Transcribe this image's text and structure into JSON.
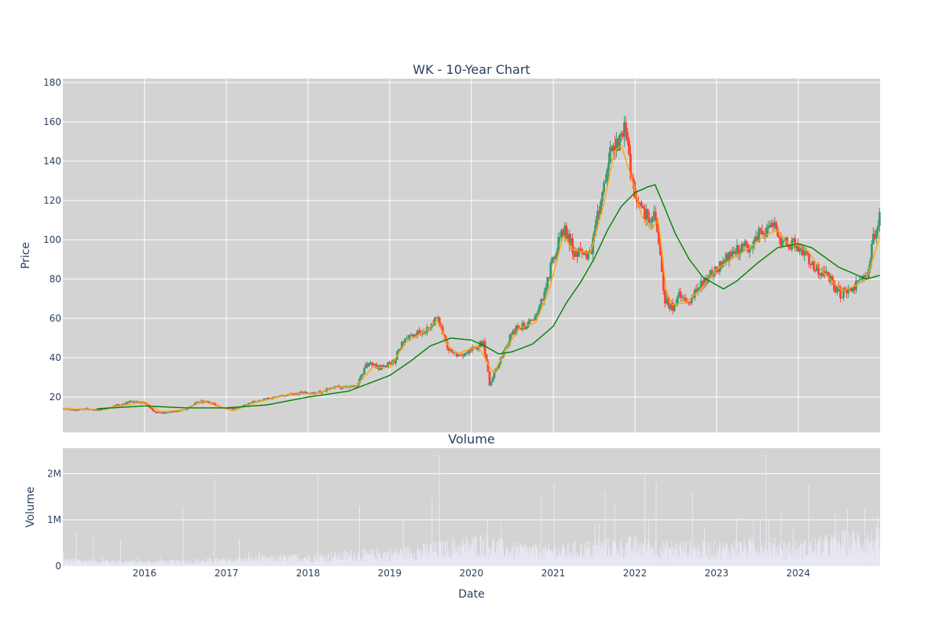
{
  "chart_data": [
    {
      "type": "candlestick",
      "title": "WK - 10-Year Chart",
      "ylabel": "Price",
      "ylim": [
        2,
        182
      ],
      "yticks": [
        20,
        40,
        60,
        80,
        100,
        120,
        140,
        160,
        180
      ],
      "xlim": [
        "2015-01-01",
        "2025-01-01"
      ],
      "x_gridlines": [
        "2016-01-01",
        "2017-01-01",
        "2018-01-01",
        "2019-01-01",
        "2020-01-01",
        "2021-01-01",
        "2022-01-01",
        "2023-01-01",
        "2024-01-01"
      ],
      "grid": true,
      "background": "#d3d3d3",
      "colors": {
        "up": "#3d9970",
        "down": "#ff4136",
        "ma_short": "#ffa500",
        "ma_long": "#008000"
      },
      "price_path": [
        [
          "2015-01-01",
          14
        ],
        [
          "2015-02-15",
          13
        ],
        [
          "2015-04-01",
          14
        ],
        [
          "2015-06-01",
          13.5
        ],
        [
          "2015-07-15",
          14
        ],
        [
          "2015-09-01",
          16
        ],
        [
          "2015-11-01",
          17.5
        ],
        [
          "2016-01-01",
          17
        ],
        [
          "2016-02-15",
          12
        ],
        [
          "2016-04-15",
          12
        ],
        [
          "2016-07-01",
          14
        ],
        [
          "2016-09-01",
          18
        ],
        [
          "2016-10-15",
          17
        ],
        [
          "2016-12-15",
          14
        ],
        [
          "2017-02-01",
          14
        ],
        [
          "2017-05-01",
          17.5
        ],
        [
          "2017-08-01",
          20
        ],
        [
          "2017-11-01",
          22
        ],
        [
          "2018-02-01",
          22
        ],
        [
          "2018-05-01",
          25
        ],
        [
          "2018-08-01",
          25
        ],
        [
          "2018-09-15",
          37
        ],
        [
          "2018-11-15",
          35
        ],
        [
          "2019-01-15",
          38
        ],
        [
          "2019-03-01",
          49
        ],
        [
          "2019-06-01",
          54
        ],
        [
          "2019-08-01",
          60
        ],
        [
          "2019-09-15",
          45
        ],
        [
          "2019-11-01",
          41
        ],
        [
          "2020-01-15",
          45
        ],
        [
          "2020-02-20",
          48
        ],
        [
          "2020-03-20",
          26
        ],
        [
          "2020-04-15",
          34
        ],
        [
          "2020-06-01",
          47
        ],
        [
          "2020-07-15",
          55
        ],
        [
          "2020-10-01",
          58
        ],
        [
          "2020-11-15",
          72
        ],
        [
          "2021-01-01",
          92
        ],
        [
          "2021-02-15",
          106
        ],
        [
          "2021-04-01",
          94
        ],
        [
          "2021-06-15",
          92
        ],
        [
          "2021-08-01",
          122
        ],
        [
          "2021-09-15",
          146
        ],
        [
          "2021-10-15",
          150
        ],
        [
          "2021-11-15",
          156
        ],
        [
          "2021-12-15",
          130
        ],
        [
          "2022-01-20",
          116
        ],
        [
          "2022-03-01",
          112
        ],
        [
          "2022-04-01",
          110
        ],
        [
          "2022-05-10",
          70
        ],
        [
          "2022-06-15",
          65
        ],
        [
          "2022-07-15",
          72
        ],
        [
          "2022-08-15",
          68
        ],
        [
          "2022-10-01",
          74
        ],
        [
          "2022-11-15",
          80
        ],
        [
          "2023-01-01",
          86
        ],
        [
          "2023-03-15",
          94
        ],
        [
          "2023-04-15",
          96
        ],
        [
          "2023-06-01",
          97
        ],
        [
          "2023-07-15",
          104
        ],
        [
          "2023-09-15",
          107
        ],
        [
          "2023-10-20",
          98
        ],
        [
          "2023-12-15",
          98
        ],
        [
          "2024-02-01",
          93
        ],
        [
          "2024-03-15",
          85
        ],
        [
          "2024-05-01",
          82
        ],
        [
          "2024-07-01",
          73
        ],
        [
          "2024-08-01",
          73
        ],
        [
          "2024-10-01",
          79
        ],
        [
          "2024-11-01",
          82
        ],
        [
          "2024-12-01",
          103
        ],
        [
          "2024-12-31",
          112
        ]
      ],
      "ma_short_path": [
        [
          "2015-01-01",
          14
        ],
        [
          "2015-06-01",
          13.8
        ],
        [
          "2015-09-15",
          15.5
        ],
        [
          "2016-01-01",
          17.5
        ],
        [
          "2016-03-15",
          12.5
        ],
        [
          "2016-07-01",
          13.5
        ],
        [
          "2016-09-15",
          18
        ],
        [
          "2016-12-15",
          14.5
        ],
        [
          "2017-02-01",
          13
        ],
        [
          "2017-05-01",
          17
        ],
        [
          "2017-08-01",
          19.5
        ],
        [
          "2017-11-01",
          22
        ],
        [
          "2018-02-01",
          21.5
        ],
        [
          "2018-05-01",
          25
        ],
        [
          "2018-08-01",
          25
        ],
        [
          "2018-10-15",
          35
        ],
        [
          "2019-01-01",
          35
        ],
        [
          "2019-03-15",
          48
        ],
        [
          "2019-06-15",
          54
        ],
        [
          "2019-08-01",
          59
        ],
        [
          "2019-09-20",
          46
        ],
        [
          "2019-11-01",
          42
        ],
        [
          "2020-02-01",
          46
        ],
        [
          "2020-03-20",
          36
        ],
        [
          "2020-04-10",
          32
        ],
        [
          "2020-06-01",
          44
        ],
        [
          "2020-08-01",
          55
        ],
        [
          "2020-10-15",
          58
        ],
        [
          "2020-12-15",
          75
        ],
        [
          "2021-02-15",
          102
        ],
        [
          "2021-04-01",
          95
        ],
        [
          "2021-06-15",
          93
        ],
        [
          "2021-08-15",
          118
        ],
        [
          "2021-10-01",
          145
        ],
        [
          "2021-11-01",
          148
        ],
        [
          "2021-12-15",
          132
        ],
        [
          "2022-02-01",
          112
        ],
        [
          "2022-03-15",
          105
        ],
        [
          "2022-04-15",
          110
        ],
        [
          "2022-05-20",
          75
        ],
        [
          "2022-06-15",
          67
        ],
        [
          "2022-08-15",
          68
        ],
        [
          "2022-10-15",
          74
        ],
        [
          "2023-01-01",
          85
        ],
        [
          "2023-04-01",
          92
        ],
        [
          "2023-06-01",
          96
        ],
        [
          "2023-08-01",
          102
        ],
        [
          "2023-10-01",
          105
        ],
        [
          "2023-11-15",
          98
        ],
        [
          "2024-01-01",
          97
        ],
        [
          "2024-02-15",
          94
        ],
        [
          "2024-04-15",
          84
        ],
        [
          "2024-06-01",
          79
        ],
        [
          "2024-07-15",
          74
        ],
        [
          "2024-09-01",
          76
        ],
        [
          "2024-11-01",
          80
        ],
        [
          "2024-12-31",
          102
        ]
      ],
      "ma_long_path": [
        [
          "2015-06-01",
          14
        ],
        [
          "2016-01-01",
          15.5
        ],
        [
          "2016-07-01",
          14.5
        ],
        [
          "2017-01-01",
          14.5
        ],
        [
          "2017-07-01",
          16
        ],
        [
          "2018-01-01",
          20
        ],
        [
          "2018-07-01",
          23
        ],
        [
          "2018-10-01",
          27
        ],
        [
          "2019-01-01",
          31
        ],
        [
          "2019-04-01",
          38
        ],
        [
          "2019-07-01",
          46
        ],
        [
          "2019-10-01",
          50
        ],
        [
          "2020-01-01",
          49
        ],
        [
          "2020-03-01",
          46
        ],
        [
          "2020-05-01",
          42
        ],
        [
          "2020-07-01",
          43
        ],
        [
          "2020-10-01",
          47
        ],
        [
          "2021-01-01",
          56
        ],
        [
          "2021-03-01",
          68
        ],
        [
          "2021-05-01",
          78
        ],
        [
          "2021-07-01",
          90
        ],
        [
          "2021-09-01",
          105
        ],
        [
          "2021-11-01",
          117
        ],
        [
          "2022-01-01",
          124
        ],
        [
          "2022-03-01",
          127
        ],
        [
          "2022-04-01",
          128
        ],
        [
          "2022-05-01",
          120
        ],
        [
          "2022-07-01",
          103
        ],
        [
          "2022-09-01",
          90
        ],
        [
          "2022-11-01",
          81
        ],
        [
          "2023-01-01",
          77
        ],
        [
          "2023-02-01",
          75
        ],
        [
          "2023-04-01",
          79
        ],
        [
          "2023-07-01",
          88
        ],
        [
          "2023-10-01",
          96
        ],
        [
          "2024-01-01",
          98
        ],
        [
          "2024-03-01",
          96
        ],
        [
          "2024-05-01",
          91
        ],
        [
          "2024-07-01",
          86
        ],
        [
          "2024-09-01",
          83
        ],
        [
          "2024-11-01",
          80
        ],
        [
          "2024-12-31",
          82
        ]
      ]
    },
    {
      "type": "bar",
      "title": "Volume",
      "xlabel": "Date",
      "ylabel": "Volume",
      "ylim": [
        0,
        2550000
      ],
      "yticks": [
        0,
        1000000,
        2000000
      ],
      "ytick_labels": [
        "0",
        "1M",
        "2M"
      ],
      "xlim": [
        "2015-01-01",
        "2025-01-01"
      ],
      "xticks": [
        "2016-01-01",
        "2017-01-01",
        "2018-01-01",
        "2019-01-01",
        "2020-01-01",
        "2021-01-01",
        "2022-01-01",
        "2023-01-01",
        "2024-01-01"
      ],
      "xtick_labels": [
        "2016",
        "2017",
        "2018",
        "2019",
        "2020",
        "2021",
        "2022",
        "2023",
        "2024"
      ],
      "grid": true,
      "background": "#d3d3d3",
      "bar_color": "#e8e8f5",
      "volume_base_path": [
        [
          "2015-01-01",
          130000
        ],
        [
          "2016-01-01",
          90000
        ],
        [
          "2017-01-01",
          130000
        ],
        [
          "2018-01-01",
          200000
        ],
        [
          "2018-09-01",
          260000
        ],
        [
          "2019-01-01",
          280000
        ],
        [
          "2019-08-01",
          380000
        ],
        [
          "2020-03-01",
          520000
        ],
        [
          "2020-06-01",
          380000
        ],
        [
          "2021-01-01",
          330000
        ],
        [
          "2021-08-01",
          420000
        ],
        [
          "2022-01-01",
          460000
        ],
        [
          "2022-06-01",
          400000
        ],
        [
          "2023-01-01",
          380000
        ],
        [
          "2023-08-01",
          460000
        ],
        [
          "2024-01-01",
          380000
        ],
        [
          "2024-08-01",
          560000
        ],
        [
          "2024-12-31",
          600000
        ]
      ],
      "volume_spikes": [
        [
          "2015-03-01",
          750000
        ],
        [
          "2015-05-15",
          600000
        ],
        [
          "2015-09-15",
          600000
        ],
        [
          "2016-06-20",
          1300000
        ],
        [
          "2016-11-10",
          1900000
        ],
        [
          "2017-03-01",
          600000
        ],
        [
          "2018-02-15",
          1950000
        ],
        [
          "2018-08-20",
          1300000
        ],
        [
          "2019-03-01",
          1000000
        ],
        [
          "2019-07-10",
          1450000
        ],
        [
          "2019-08-10",
          2400000
        ],
        [
          "2020-03-15",
          1000000
        ],
        [
          "2020-11-10",
          1500000
        ],
        [
          "2021-01-05",
          1800000
        ],
        [
          "2021-08-20",
          1600000
        ],
        [
          "2021-10-01",
          1350000
        ],
        [
          "2022-02-15",
          2000000
        ],
        [
          "2022-04-05",
          1800000
        ],
        [
          "2022-09-15",
          1600000
        ],
        [
          "2023-04-01",
          1050000
        ],
        [
          "2023-08-10",
          2400000
        ],
        [
          "2023-10-15",
          1150000
        ],
        [
          "2024-02-15",
          1750000
        ],
        [
          "2024-06-15",
          1150000
        ],
        [
          "2024-12-20",
          1100000
        ]
      ]
    }
  ]
}
